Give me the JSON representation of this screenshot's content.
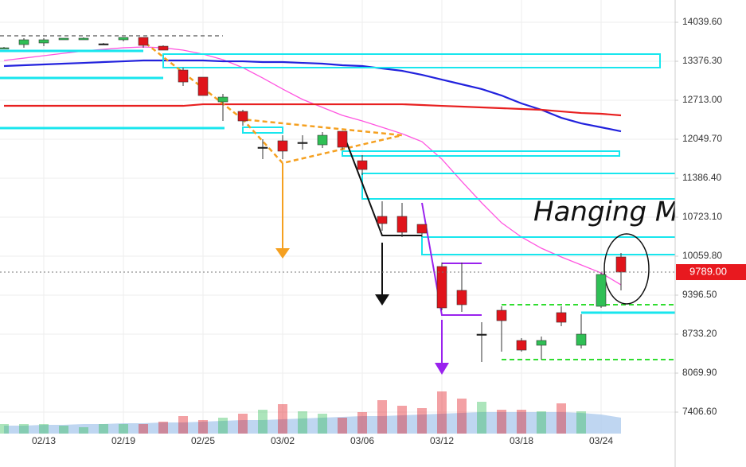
{
  "chart_data": {
    "type": "candlestick",
    "categories": [
      null,
      null,
      "02/13",
      null,
      null,
      null,
      "02/19",
      null,
      null,
      null,
      "02/25",
      null,
      null,
      null,
      "03/02",
      null,
      null,
      null,
      "03/06",
      null,
      null,
      null,
      "03/12",
      null,
      null,
      null,
      "03/18",
      null,
      null,
      null,
      "03/24",
      null
    ],
    "open": [
      13593,
      13661,
      13688,
      13742,
      13742,
      13674,
      13742,
      13782,
      13633,
      13227,
      13106,
      12686,
      12523,
      11914,
      12023,
      11996,
      11955,
      12185,
      11684,
      10737,
      10737,
      10601,
      9884,
      9478,
      8733,
      9139,
      8625,
      8544,
      9099,
      8544,
      9207,
      10046
    ],
    "high": [
      13620,
      13769,
      13769,
      13769,
      13782,
      13688,
      13782,
      13782,
      13647,
      13268,
      13106,
      12821,
      12551,
      12050,
      12117,
      12117,
      12172,
      12185,
      11779,
      10994,
      10967,
      10601,
      9951,
      9951,
      8936,
      9207,
      8665,
      8692,
      9207,
      9072,
      9775,
      10114
    ],
    "low": [
      13593,
      13606,
      13633,
      13742,
      13742,
      13661,
      13715,
      13606,
      13566,
      12957,
      12794,
      12361,
      12280,
      11711,
      11711,
      11874,
      11901,
      11874,
      11441,
      10493,
      10385,
      10385,
      9139,
      9112,
      8259,
      8435,
      8435,
      8300,
      8868,
      8489,
      9180,
      9478
    ],
    "close": [
      13606,
      13742,
      13742,
      13769,
      13769,
      13674,
      13782,
      13647,
      13566,
      13024,
      12794,
      12767,
      12361,
      11914,
      11847,
      11996,
      12117,
      11914,
      11535,
      10615,
      10466,
      10452,
      9180,
      9234,
      8733,
      8963,
      8462,
      8625,
      8936,
      8733,
      9748,
      9789
    ],
    "up_color": "#2fbf55",
    "down_color": "#e0141b",
    "doji_color": "#222222",
    "moving_averages": [
      {
        "color": "#ff55e0",
        "values": [
          13390,
          13430,
          13471,
          13512,
          13552,
          13579,
          13606,
          13620,
          13606,
          13566,
          13498,
          13403,
          13268,
          13092,
          12903,
          12727,
          12591,
          12456,
          12361,
          12253,
          12144,
          12009,
          11711,
          11332,
          10967,
          10628,
          10385,
          10195,
          10046,
          9911,
          9775,
          9572
        ]
      },
      {
        "color": "#2222dd",
        "values": [
          13295,
          13309,
          13322,
          13336,
          13349,
          13363,
          13376,
          13390,
          13390,
          13390,
          13390,
          13376,
          13376,
          13363,
          13363,
          13349,
          13336,
          13309,
          13295,
          13254,
          13214,
          13146,
          13065,
          12984,
          12903,
          12794,
          12659,
          12551,
          12415,
          12320,
          12253,
          12185
        ]
      },
      {
        "color": "#e82020",
        "values": [
          12618,
          12618,
          12618,
          12618,
          12618,
          12618,
          12618,
          12618,
          12618,
          12618,
          12645,
          12645,
          12645,
          12645,
          12645,
          12645,
          12645,
          12645,
          12645,
          12645,
          12645,
          12632,
          12618,
          12605,
          12591,
          12578,
          12564,
          12551,
          12523,
          12496,
          12483,
          12456
        ]
      }
    ],
    "volume": {
      "values": [
        12,
        12,
        12,
        10,
        8,
        12,
        12,
        12,
        15,
        22,
        17,
        20,
        25,
        30,
        37,
        28,
        25,
        20,
        27,
        42,
        35,
        32,
        53,
        44,
        40,
        30,
        30,
        28,
        38,
        28,
        null,
        null
      ],
      "ma_values": [
        10,
        10,
        11,
        11,
        12,
        12,
        13,
        13,
        14,
        14,
        15,
        16,
        17,
        17,
        18,
        19,
        20,
        21,
        22,
        22,
        23,
        24,
        25,
        26,
        27,
        27,
        27,
        27,
        27,
        26,
        24,
        20
      ],
      "ma_color": "#a9c8ec",
      "vlim": [
        0,
        60
      ]
    },
    "ylim": [
      7041,
      14419
    ],
    "yticks": [
      {
        "value": 14039.6,
        "label": "14039.60"
      },
      {
        "value": 13376.3,
        "label": "13376.30"
      },
      {
        "value": 12713,
        "label": "12713.00"
      },
      {
        "value": 12049.7,
        "label": "12049.70"
      },
      {
        "value": 11386.4,
        "label": "11386.40"
      },
      {
        "value": 10723.1,
        "label": "10723.10"
      },
      {
        "value": 10059.8,
        "label": "10059.80"
      },
      {
        "value": 9396.5,
        "label": "9396.50"
      },
      {
        "value": 8733.2,
        "label": "8733.20"
      },
      {
        "value": 8069.9,
        "label": "8069.90"
      },
      {
        "value": 7406.6,
        "label": "7406.60"
      }
    ],
    "current_price": {
      "value": 9789,
      "label": "9789.00",
      "color": "#e8191f"
    },
    "annotation": "Hanging Man",
    "grid": true
  }
}
